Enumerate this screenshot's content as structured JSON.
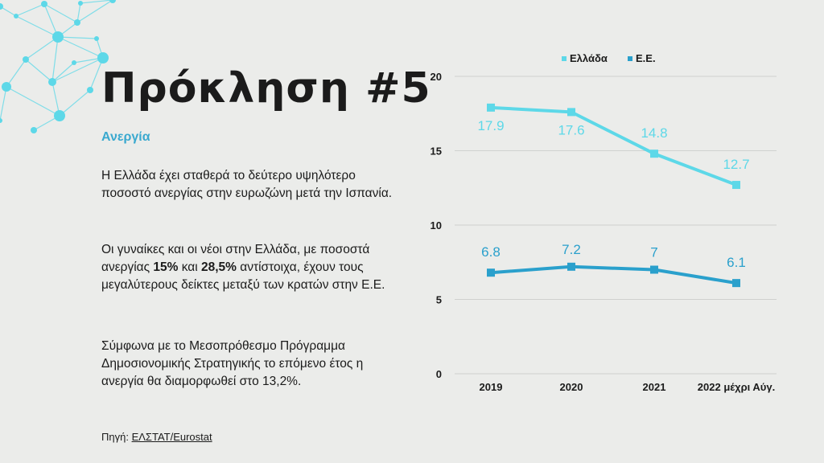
{
  "title": "Πρόκληση #5",
  "subtitle": "Ανεργία",
  "paragraphs": {
    "p1": "Η Ελλάδα έχει σταθερά το δεύτερο υψηλότερο ποσοστό ανεργίας στην ευρωζώνη μετά την Ισπανία.",
    "p2_a": "Οι γυναίκες και οι νέοι στην Ελλάδα, με ποσοστά ανεργίας ",
    "p2_b": "15%",
    "p2_c": " και ",
    "p2_d": "28,5%",
    "p2_e": " αντίστοιχα, έχουν τους μεγαλύτερους δείκτες μεταξύ των κρατών στην Ε.Ε.",
    "p3": "Σύμφωνα με το Μεσοπρόθεσμο Πρόγραμμα Δημοσιονομικής Στρατηγικής το επόμενο έτος η ανεργία θα διαμορφωθεί στο 13,2%."
  },
  "source": {
    "label": "Πηγή: ",
    "link": "ΕΛΣΤΑΤ/Eurostat"
  },
  "colors": {
    "greece": "#5dd8e8",
    "eu": "#2aa0cc",
    "accent": "#3aa9cf",
    "network": "#5dd8e8"
  },
  "chart_data": {
    "type": "line",
    "categories": [
      "2019",
      "2020",
      "2021",
      "2022 μέχρι Αύγ."
    ],
    "series": [
      {
        "name": "Ελλάδα",
        "values": [
          17.9,
          17.6,
          14.8,
          12.7
        ],
        "labels": [
          "17.9",
          "17.6",
          "14.8",
          "12.7"
        ]
      },
      {
        "name": "Ε.Ε.",
        "values": [
          6.8,
          7.2,
          7,
          6.1
        ],
        "labels": [
          "6.8",
          "7.2",
          "7",
          "6.1"
        ]
      }
    ],
    "ylim": [
      0,
      20
    ],
    "yticks": [
      "0",
      "5",
      "10",
      "15",
      "20"
    ],
    "grid": true,
    "legend_position": "top"
  }
}
